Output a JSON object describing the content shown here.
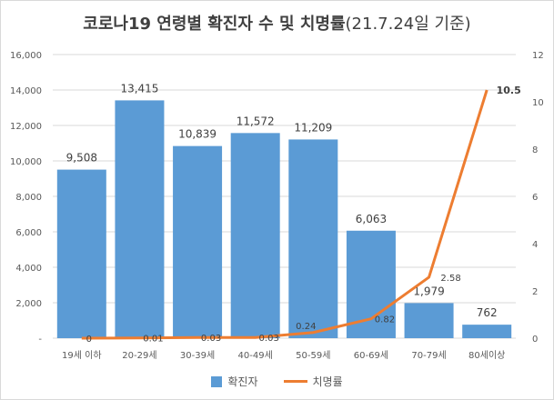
{
  "title": {
    "main": "코로나19 연령별 확진자 수 및 치명률",
    "date": "(21.7.24일 기준)"
  },
  "legend": {
    "bar_label": "확진자",
    "line_label": "치명률"
  },
  "colors": {
    "bar": "#5b9bd5",
    "line": "#ed7d31",
    "grid": "#d9d9d9",
    "text": "#404040",
    "axis_text": "#595959"
  },
  "chart_data": {
    "type": "bar+line",
    "title": "코로나19 연령별 확진자 수 및 치명률(21.7.24일 기준)",
    "categories": [
      "19세 이하",
      "20-29세",
      "30-39세",
      "40-49세",
      "50-59세",
      "60-69세",
      "70-79세",
      "80세이상"
    ],
    "series": [
      {
        "name": "확진자",
        "type": "bar",
        "axis": "left",
        "values": [
          9508,
          13415,
          10839,
          11572,
          11209,
          6063,
          1979,
          762
        ],
        "labels": [
          "9,508",
          "13,415",
          "10,839",
          "11,572",
          "11,209",
          "6,063",
          "1,979",
          "762"
        ]
      },
      {
        "name": "치명률",
        "type": "line",
        "axis": "right",
        "values": [
          0,
          0.01,
          0.03,
          0.03,
          0.24,
          0.82,
          2.58,
          10.5
        ],
        "labels": [
          "0",
          "0.01",
          "0.03",
          "0.03",
          "0.24",
          "0.82",
          "2.58",
          "10.5"
        ]
      }
    ],
    "y_left": {
      "min": 0,
      "max": 16000,
      "step": 2000,
      "ticks": [
        "-",
        "2,000",
        "4,000",
        "6,000",
        "8,000",
        "10,000",
        "12,000",
        "14,000",
        "16,000"
      ]
    },
    "y_right": {
      "min": 0,
      "max": 12,
      "step": 2,
      "ticks": [
        "0",
        "2",
        "4",
        "6",
        "8",
        "10",
        "12"
      ]
    },
    "grid": true,
    "legend_position": "bottom"
  }
}
